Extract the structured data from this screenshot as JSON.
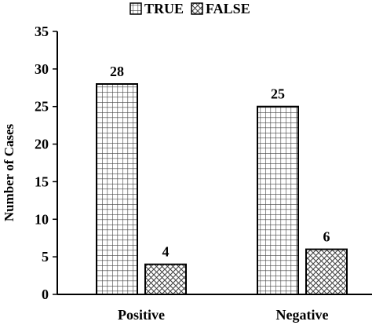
{
  "chart_data": {
    "type": "bar",
    "categories": [
      "Positive",
      "Negative"
    ],
    "series": [
      {
        "name": "TRUE",
        "values": [
          28,
          25
        ],
        "pattern": "grid"
      },
      {
        "name": "FALSE",
        "values": [
          4,
          6
        ],
        "pattern": "crosshatch"
      }
    ],
    "ylabel": "Number of Cases",
    "xlabel": "",
    "ylim": [
      0,
      35
    ],
    "yticks": [
      0,
      5,
      10,
      15,
      20,
      25,
      30,
      35
    ],
    "grid": false,
    "legend": "top",
    "colors": {
      "bar_fill": "#ffffff",
      "pattern": "#444444",
      "outline": "#000000"
    }
  }
}
